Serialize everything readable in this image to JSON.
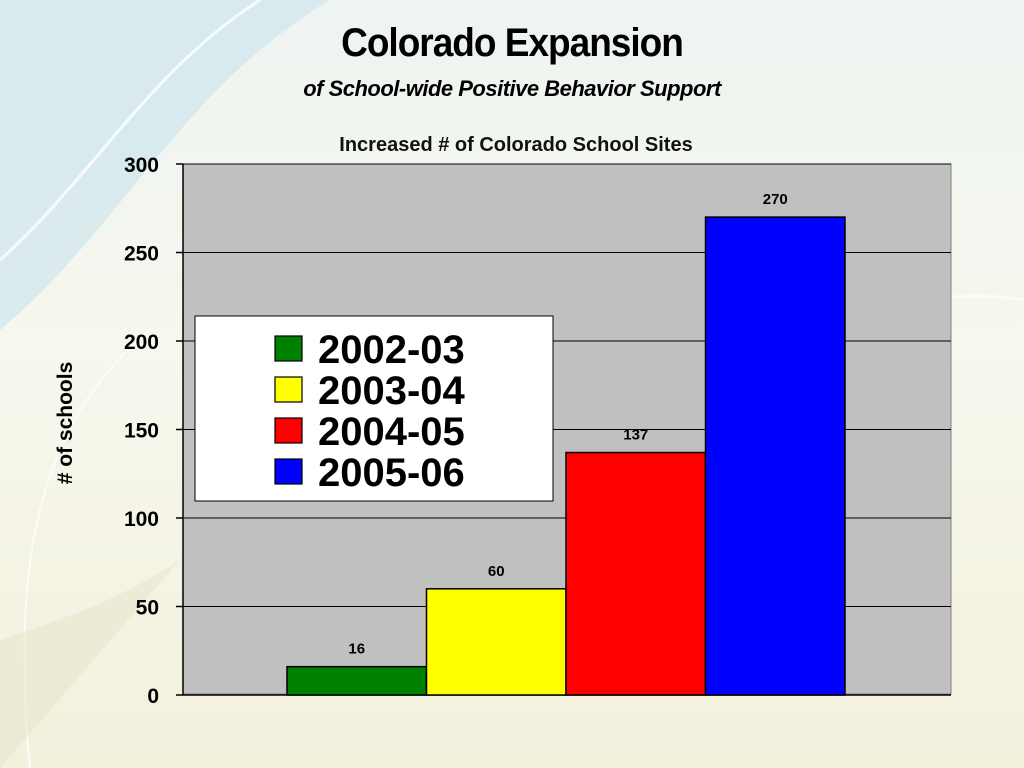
{
  "slide": {
    "title": "Colorado Expansion",
    "subtitle": "of School-wide Positive Behavior Support"
  },
  "chart_data": {
    "type": "bar",
    "title": "Increased # of Colorado School Sites",
    "xlabel": "",
    "ylabel": "# of schools",
    "ylim": [
      0,
      300
    ],
    "yticks": [
      0,
      50,
      100,
      150,
      200,
      250,
      300
    ],
    "grid": true,
    "legend_position": "left",
    "series": [
      {
        "name": "2002-03",
        "value": 16,
        "color": "#008000"
      },
      {
        "name": "2003-04",
        "value": 60,
        "color": "#ffff00"
      },
      {
        "name": "2004-05",
        "value": 137,
        "color": "#ff0000"
      },
      {
        "name": "2005-06",
        "value": 270,
        "color": "#0000ff"
      }
    ],
    "plot_background": "#c0c0c0"
  }
}
